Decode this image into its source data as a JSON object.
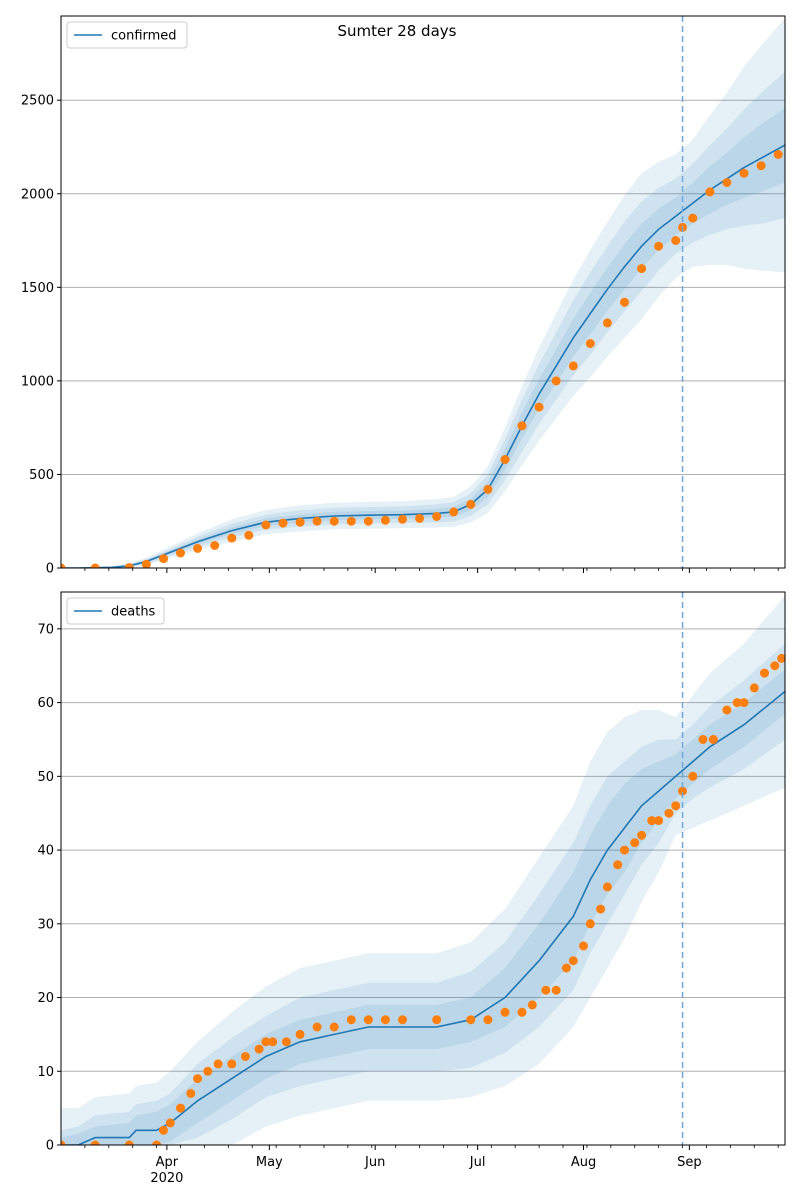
{
  "figure": {
    "title": "Sumter 28 days",
    "colors": {
      "line": "#1f77b4",
      "points": "#ff7f0e",
      "band": "#1f77b4",
      "grid": "#b0b0b0",
      "vline": "#6fa8dc"
    }
  },
  "x_axis": {
    "ticks": [
      {
        "label": "Apr",
        "sublabel": "2020",
        "day": 31
      },
      {
        "label": "May",
        "day": 61
      },
      {
        "label": "Jun",
        "day": 92
      },
      {
        "label": "Jul",
        "day": 122
      },
      {
        "label": "Aug",
        "day": 153
      },
      {
        "label": "Sep",
        "day": 184
      }
    ]
  },
  "chart_data": [
    {
      "type": "line",
      "legend": "confirmed",
      "legend_position": "top-left",
      "title": "Sumter 28 days",
      "x_range": [
        "2020-03-01",
        "2020-09-29"
      ],
      "xlim_days": [
        0,
        212
      ],
      "ylim": [
        0,
        2950
      ],
      "yticks": [
        0,
        500,
        1000,
        1500,
        2000,
        2500
      ],
      "grid": "horizontal",
      "forecast_start": "2020-08-30",
      "forecast_day": 182,
      "fit": {
        "x": [
          0,
          5,
          15,
          20,
          25,
          30,
          40,
          50,
          60,
          70,
          80,
          90,
          100,
          110,
          115,
          120,
          125,
          130,
          135,
          140,
          145,
          150,
          155,
          160,
          165,
          170,
          175,
          180,
          185,
          190,
          195,
          200,
          205,
          212
        ],
        "y": [
          0,
          0,
          3,
          12,
          35,
          70,
          140,
          200,
          245,
          265,
          278,
          282,
          285,
          292,
          300,
          340,
          420,
          580,
          760,
          930,
          1080,
          1230,
          1360,
          1490,
          1610,
          1720,
          1810,
          1880,
          1950,
          2020,
          2080,
          2140,
          2190,
          2260
        ]
      },
      "band_widths": [
        [
          0,
          1,
          2,
          4,
          6,
          8,
          14,
          18,
          20,
          22,
          22,
          22,
          22,
          24,
          26,
          30,
          40,
          55,
          70,
          80,
          90,
          100,
          110,
          115,
          120,
          120,
          110,
          100,
          110,
          125,
          140,
          160,
          180,
          200
        ],
        [
          0,
          2,
          5,
          8,
          12,
          16,
          28,
          36,
          40,
          44,
          44,
          44,
          44,
          48,
          52,
          60,
          80,
          110,
          140,
          160,
          180,
          200,
          220,
          230,
          240,
          240,
          220,
          200,
          210,
          240,
          270,
          310,
          350,
          390
        ],
        [
          0,
          4,
          8,
          14,
          20,
          28,
          45,
          60,
          65,
          70,
          70,
          72,
          72,
          76,
          80,
          95,
          125,
          170,
          210,
          250,
          280,
          310,
          340,
          360,
          380,
          390,
          360,
          330,
          340,
          400,
          460,
          540,
          600,
          680
        ]
      ],
      "points": {
        "x": [
          0,
          10,
          20,
          25,
          30,
          35,
          40,
          45,
          50,
          55,
          60,
          65,
          70,
          75,
          80,
          85,
          90,
          95,
          100,
          105,
          110,
          115,
          120,
          125,
          130,
          135,
          140,
          145,
          150,
          155,
          160,
          165,
          170,
          175,
          180,
          182,
          185,
          190,
          195,
          200,
          205,
          210
        ],
        "y": [
          0,
          0,
          2,
          20,
          50,
          80,
          105,
          120,
          160,
          175,
          230,
          240,
          245,
          250,
          250,
          250,
          250,
          255,
          260,
          265,
          275,
          300,
          340,
          420,
          580,
          760,
          860,
          1000,
          1080,
          1200,
          1310,
          1420,
          1600,
          1720,
          1750,
          1820,
          1870,
          2010,
          2060,
          2110,
          2150,
          2210
        ]
      }
    },
    {
      "type": "line",
      "legend": "deaths",
      "legend_position": "top-left",
      "x_range": [
        "2020-03-01",
        "2020-09-29"
      ],
      "xlim_days": [
        0,
        212
      ],
      "ylim": [
        0,
        75
      ],
      "yticks": [
        0,
        10,
        20,
        30,
        40,
        50,
        60,
        70
      ],
      "grid": "horizontal",
      "forecast_start": "2020-08-30",
      "forecast_day": 182,
      "fit": {
        "x": [
          0,
          5,
          10,
          20,
          22,
          28,
          32,
          40,
          50,
          60,
          70,
          80,
          90,
          100,
          110,
          120,
          130,
          140,
          150,
          155,
          160,
          165,
          170,
          175,
          180,
          185,
          190,
          200,
          212
        ],
        "y": [
          0,
          0,
          1,
          1,
          2,
          2,
          3,
          6,
          9,
          12,
          14,
          15,
          16,
          16,
          16,
          17,
          20,
          25,
          31,
          36,
          40,
          43,
          46,
          48,
          50,
          52,
          54,
          57,
          61.5
        ]
      },
      "band_widths": [
        [
          1,
          1.5,
          1.5,
          2,
          2,
          2.5,
          2.5,
          3,
          3,
          3,
          3,
          3,
          3,
          3,
          3,
          3,
          4,
          5,
          6,
          6,
          6,
          6,
          5,
          4,
          3,
          3,
          3,
          3,
          3
        ],
        [
          2,
          2.5,
          3,
          3.5,
          3.5,
          4,
          4,
          5,
          5.5,
          5.5,
          6,
          6,
          6,
          6,
          6,
          6.5,
          7.5,
          9,
          10,
          10,
          10,
          9,
          8,
          7,
          5,
          5,
          5.5,
          6,
          6.5
        ],
        [
          5,
          5,
          5.5,
          6,
          6,
          6.5,
          7,
          8,
          9,
          9.5,
          10,
          10,
          10,
          10,
          10,
          10.5,
          12,
          14,
          15,
          16,
          16,
          15,
          13,
          11,
          8,
          9,
          10,
          11,
          13
        ]
      ],
      "points": {
        "x": [
          0,
          10,
          20,
          28,
          30,
          32,
          35,
          38,
          40,
          43,
          46,
          50,
          54,
          58,
          60,
          62,
          66,
          70,
          75,
          80,
          85,
          90,
          95,
          100,
          110,
          120,
          125,
          130,
          135,
          138,
          142,
          145,
          148,
          150,
          153,
          155,
          158,
          160,
          163,
          165,
          168,
          170,
          173,
          175,
          178,
          180,
          182,
          185,
          188,
          191,
          195,
          198,
          200,
          203,
          206,
          209,
          211
        ],
        "y": [
          0,
          0,
          0,
          0,
          2,
          3,
          5,
          7,
          9,
          10,
          11,
          11,
          12,
          13,
          14,
          14,
          14,
          15,
          16,
          16,
          17,
          17,
          17,
          17,
          17,
          17,
          17,
          18,
          18,
          19,
          21,
          21,
          24,
          25,
          27,
          30,
          32,
          35,
          38,
          40,
          41,
          42,
          44,
          44,
          45,
          46,
          48,
          50,
          55,
          55,
          59,
          60,
          60,
          62,
          64,
          65,
          66
        ]
      }
    }
  ]
}
